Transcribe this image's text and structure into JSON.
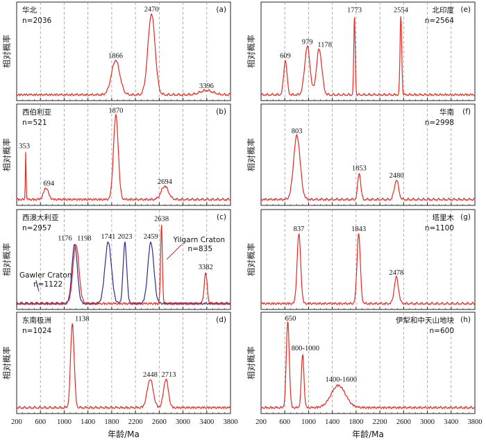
{
  "figure": {
    "ylabel": "相对概率",
    "xlabel": "年龄/Ma",
    "xticks": [
      "200",
      "600",
      "1000",
      "1400",
      "1800",
      "2200",
      "2600",
      "3000",
      "3400",
      "3800"
    ]
  },
  "chart_data": [
    {
      "type": "line",
      "panel_label": "(a)",
      "title": "华北",
      "n_text": "n=2036",
      "xlim": [
        200,
        3800
      ],
      "peaks": [
        {
          "label": "1866",
          "x": 1866,
          "h": 0.4
        },
        {
          "label": "2470",
          "x": 2470,
          "h": 0.94
        },
        {
          "label": "3396",
          "x": 3396,
          "h": 0.05
        }
      ],
      "series": [
        {
          "name": "华北",
          "color": "#e8261e"
        }
      ]
    },
    {
      "type": "line",
      "panel_label": "(b)",
      "title": "西伯利亚",
      "n_text": "n=521",
      "xlim": [
        200,
        3800
      ],
      "peaks": [
        {
          "label": "353",
          "x": 353,
          "h": 0.55
        },
        {
          "label": "694",
          "x": 694,
          "h": 0.13
        },
        {
          "label": "1870",
          "x": 1870,
          "h": 0.95
        },
        {
          "label": "2694",
          "x": 2694,
          "h": 0.15
        }
      ],
      "series": [
        {
          "name": "西伯利亚",
          "color": "#e8261e"
        }
      ]
    },
    {
      "type": "line",
      "panel_label": "(c)",
      "title": "西澳大利亚",
      "n_text": "n=2957",
      "xlim": [
        200,
        3800
      ],
      "peaks": [
        {
          "label": "1176",
          "x": 1176,
          "h": 0.68,
          "color": "#2a2a8c"
        },
        {
          "label": "1198",
          "x": 1198,
          "h": 0.68,
          "color": "#e8261e"
        },
        {
          "label": "1741",
          "x": 1741,
          "h": 0.7,
          "color": "#2a2a8c"
        },
        {
          "label": "2023",
          "x": 2023,
          "h": 0.7,
          "color": "#2a2a8c"
        },
        {
          "label": "2459",
          "x": 2459,
          "h": 0.7,
          "color": "#2a2a8c"
        },
        {
          "label": "2638",
          "x": 2638,
          "h": 0.9,
          "color": "#e8261e"
        },
        {
          "label": "3382",
          "x": 3382,
          "h": 0.35,
          "color": "#e8261e"
        }
      ],
      "annotations": [
        {
          "text": "Gawler Craton",
          "color": "#2a2a8c"
        },
        {
          "text": "n=1122",
          "color": "#2a2a8c"
        },
        {
          "text": "Yilgarn Craton",
          "color": "#e8261e"
        },
        {
          "text": "n=835",
          "color": "#e8261e"
        }
      ],
      "series": [
        {
          "name": "Gawler Craton",
          "color": "#2a2a8c"
        },
        {
          "name": "Yilgarn Craton",
          "color": "#e8261e"
        }
      ]
    },
    {
      "type": "line",
      "panel_label": "(d)",
      "title": "东南极洲",
      "n_text": "n=1024",
      "xlim": [
        200,
        3800
      ],
      "peaks": [
        {
          "label": "1138",
          "x": 1138,
          "h": 0.95
        },
        {
          "label": "2448",
          "x": 2448,
          "h": 0.32
        },
        {
          "label": "2713",
          "x": 2713,
          "h": 0.32
        }
      ],
      "series": [
        {
          "name": "东南极洲",
          "color": "#e8261e"
        }
      ]
    },
    {
      "type": "line",
      "panel_label": "(e)",
      "title": "北印度",
      "n_text": "n=2564",
      "xlim": [
        200,
        3800
      ],
      "peaks": [
        {
          "label": "609",
          "x": 609,
          "h": 0.4
        },
        {
          "label": "979",
          "x": 979,
          "h": 0.56
        },
        {
          "label": "1178",
          "x": 1178,
          "h": 0.53
        },
        {
          "label": "1773",
          "x": 1773,
          "h": 0.93
        },
        {
          "label": "2554",
          "x": 2554,
          "h": 0.93
        }
      ],
      "series": [
        {
          "name": "北印度",
          "color": "#e8261e"
        }
      ]
    },
    {
      "type": "line",
      "panel_label": "(f)",
      "title": "华南",
      "n_text": "n=2998",
      "xlim": [
        200,
        3800
      ],
      "peaks": [
        {
          "label": "803",
          "x": 803,
          "h": 0.72
        },
        {
          "label": "1853",
          "x": 1853,
          "h": 0.3
        },
        {
          "label": "2480",
          "x": 2480,
          "h": 0.22
        }
      ],
      "series": [
        {
          "name": "华南",
          "color": "#e8261e"
        }
      ]
    },
    {
      "type": "line",
      "panel_label": "(g)",
      "title": "塔里木",
      "n_text": "n=1100",
      "xlim": [
        200,
        3800
      ],
      "peaks": [
        {
          "label": "837",
          "x": 837,
          "h": 0.8
        },
        {
          "label": "1843",
          "x": 1843,
          "h": 0.8
        },
        {
          "label": "2478",
          "x": 2478,
          "h": 0.3
        }
      ],
      "series": [
        {
          "name": "塔里木",
          "color": "#e8261e"
        }
      ]
    },
    {
      "type": "line",
      "panel_label": "(h)",
      "title": "伊犁和中天山地块",
      "n_text": "n=600",
      "xlim": [
        200,
        3800
      ],
      "peaks": [
        {
          "label": "650",
          "x": 650,
          "h": 0.97
        },
        {
          "label": "800-1000",
          "x": 900,
          "h": 0.6
        },
        {
          "label": "1400-1600",
          "x": 1500,
          "h": 0.25
        }
      ],
      "series": [
        {
          "name": "伊犁和中天山地块",
          "color": "#e8261e"
        }
      ]
    }
  ]
}
